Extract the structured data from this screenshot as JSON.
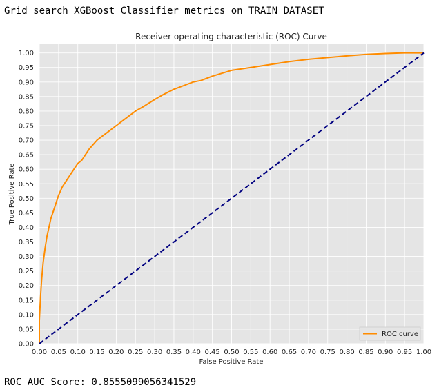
{
  "header": {
    "title": "Grid search XGBoost Classifier metrics on TRAIN DATASET"
  },
  "footer": {
    "score_text": "ROC AUC Score: 0.8555099056341529"
  },
  "colors": {
    "background": "#e5e5e5",
    "grid": "#ffffff",
    "roc": "#ff8c00",
    "diagonal": "#000080"
  },
  "chart_data": {
    "type": "line",
    "title": "Receiver operating characteristic (ROC) Curve",
    "xlabel": "False Positive Rate",
    "ylabel": "True Positive Rate",
    "xlim": [
      0,
      1
    ],
    "ylim": [
      0,
      1.03
    ],
    "grid": true,
    "legend_position": "lower-right",
    "x_ticks": [
      "0.00",
      "0.05",
      "0.10",
      "0.15",
      "0.20",
      "0.25",
      "0.30",
      "0.35",
      "0.40",
      "0.45",
      "0.50",
      "0.55",
      "0.60",
      "0.65",
      "0.70",
      "0.75",
      "0.80",
      "0.85",
      "0.90",
      "0.95",
      "1.00"
    ],
    "y_ticks": [
      "0.00",
      "0.05",
      "0.10",
      "0.15",
      "0.20",
      "0.25",
      "0.30",
      "0.35",
      "0.40",
      "0.45",
      "0.50",
      "0.55",
      "0.60",
      "0.65",
      "0.70",
      "0.75",
      "0.80",
      "0.85",
      "0.90",
      "0.95",
      "1.00"
    ],
    "series": [
      {
        "name": "ROC curve",
        "style": "solid",
        "color": "#ff8c00",
        "x": [
          0.0,
          0.0,
          0.003,
          0.006,
          0.01,
          0.015,
          0.02,
          0.03,
          0.04,
          0.05,
          0.06,
          0.075,
          0.09,
          0.1,
          0.11,
          0.12,
          0.13,
          0.15,
          0.16,
          0.18,
          0.2,
          0.22,
          0.25,
          0.27,
          0.3,
          0.32,
          0.35,
          0.38,
          0.4,
          0.42,
          0.45,
          0.5,
          0.55,
          0.6,
          0.65,
          0.7,
          0.75,
          0.8,
          0.85,
          0.9,
          0.95,
          1.0
        ],
        "y": [
          0.0,
          0.08,
          0.16,
          0.22,
          0.28,
          0.33,
          0.37,
          0.43,
          0.47,
          0.51,
          0.54,
          0.57,
          0.6,
          0.62,
          0.63,
          0.65,
          0.67,
          0.7,
          0.71,
          0.73,
          0.75,
          0.77,
          0.8,
          0.815,
          0.84,
          0.855,
          0.875,
          0.89,
          0.9,
          0.905,
          0.92,
          0.94,
          0.95,
          0.96,
          0.97,
          0.978,
          0.984,
          0.99,
          0.995,
          0.998,
          1.0,
          1.0
        ]
      },
      {
        "style": "dashed",
        "color": "#000080",
        "x": [
          0,
          1
        ],
        "y": [
          0,
          1
        ]
      }
    ]
  }
}
